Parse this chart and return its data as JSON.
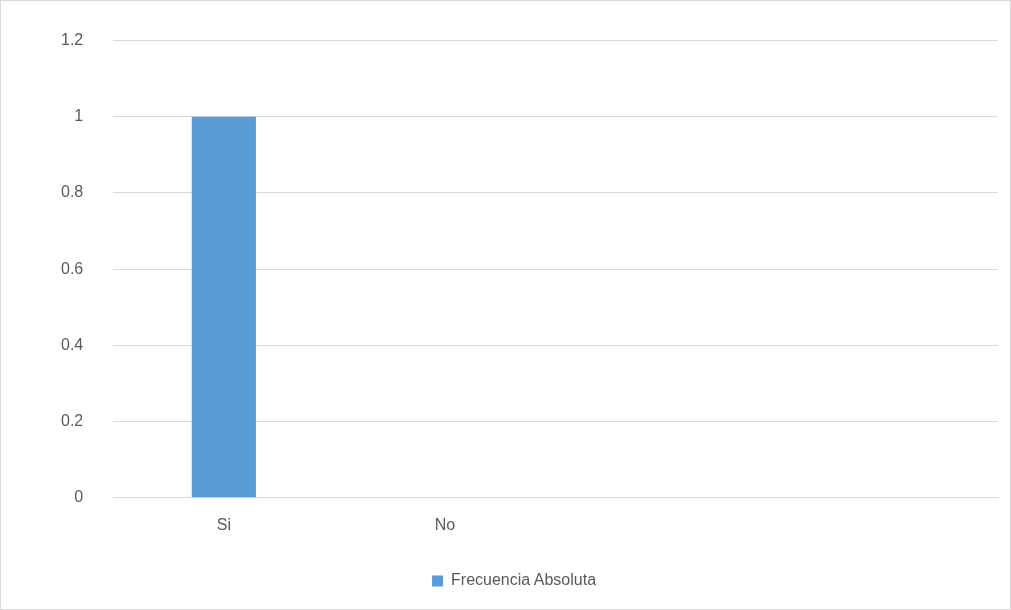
{
  "chart_data": {
    "type": "bar",
    "categories": [
      "Si",
      "No",
      null,
      null
    ],
    "series": [
      {
        "name": "Frecuencia Absoluta",
        "color": "#5b9bd5",
        "values": [
          1,
          0,
          null,
          null
        ]
      }
    ],
    "ylim": [
      0,
      1.2
    ],
    "yticks": [
      0,
      0.2,
      0.4,
      0.6,
      0.8,
      1,
      1.2
    ],
    "grid": "y",
    "legend": "bottom"
  }
}
